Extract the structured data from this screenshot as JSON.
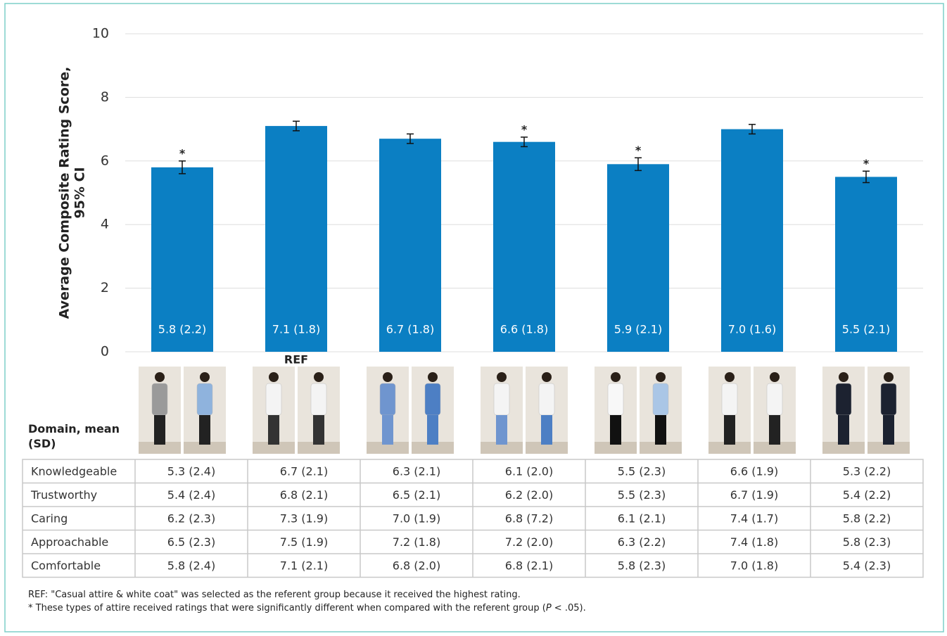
{
  "chart_data": {
    "type": "bar",
    "ylabel": [
      "Average Composite Rating Score,",
      "95% CI"
    ],
    "categories": [
      null,
      null,
      null,
      null,
      null,
      null,
      null
    ],
    "values": [
      5.8,
      7.1,
      6.7,
      6.6,
      5.9,
      7.0,
      5.5
    ],
    "value_labels": [
      "5.8 (2.2)",
      "7.1 (1.8)",
      "6.7 (1.8)",
      "6.6 (1.8)",
      "5.9 (2.1)",
      "7.0 (1.6)",
      "5.5 (2.1)"
    ],
    "errors": [
      0.2,
      0.15,
      0.15,
      0.15,
      0.2,
      0.15,
      0.18
    ],
    "top_notes": [
      "*",
      null,
      null,
      "*",
      "*",
      null,
      "*"
    ],
    "bottom_notes": [
      null,
      "REF",
      null,
      null,
      null,
      null,
      null
    ],
    "color": "#0b7fc3",
    "ylim": [
      0,
      10
    ],
    "yticks": [
      0,
      2,
      4,
      6,
      8,
      10
    ],
    "grid": true,
    "table": {
      "header": "Domain, mean (SD)",
      "rows": [
        [
          "Knowledgeable",
          "5.3 (2.4)",
          "6.7 (2.1)",
          "6.3 (2.1)",
          "6.1 (2.0)",
          "5.5 (2.3)",
          "6.6 (1.9)",
          "5.3 (2.2)"
        ],
        [
          "Trustworthy",
          "5.4 (2.4)",
          "6.8 (2.1)",
          "6.5 (2.1)",
          "6.2 (2.0)",
          "5.5 (2.3)",
          "6.7 (1.9)",
          "5.4 (2.2)"
        ],
        [
          "Caring",
          "6.2 (2.3)",
          "7.3 (1.9)",
          "7.0 (1.9)",
          "6.8 (7.2)",
          "6.1 (2.1)",
          "7.4 (1.7)",
          "5.8 (2.2)"
        ],
        [
          "Approachable",
          "6.5 (2.3)",
          "7.5 (1.9)",
          "7.2 (1.8)",
          "7.2 (2.0)",
          "6.3 (2.2)",
          "7.4 (1.8)",
          "5.8 (2.3)"
        ],
        [
          "Comfortable",
          "5.8 (2.4)",
          "7.1 (2.1)",
          "6.8 (2.0)",
          "6.8 (2.1)",
          "5.8 (2.3)",
          "7.0 (1.8)",
          "5.4 (2.3)"
        ]
      ]
    },
    "footnotes": [
      [
        "REF: \"Casual attire & white coat\" was selected as the referent group because it received the highest rating."
      ],
      [
        "* These types of attire received ratings that were significantly different when compared with the referent group (",
        "P",
        " < .05)."
      ]
    ]
  }
}
